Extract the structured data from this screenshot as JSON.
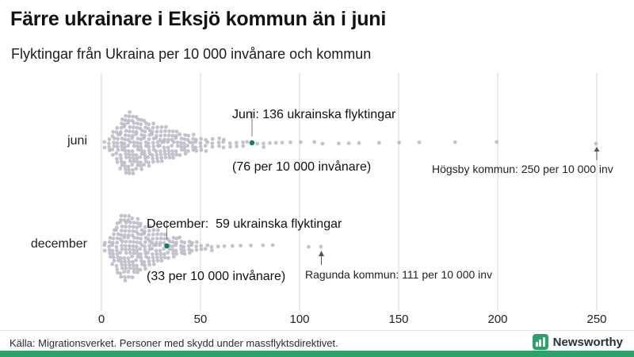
{
  "meta": {
    "source": "Källa: Migrationsverket. Personer med skydd under massflyktsdirektivet.",
    "brand": "Newsworthy"
  },
  "chart_data": {
    "type": "beeswarm",
    "title": "Färre ukrainare i Eksjö kommun än i juni",
    "subtitle": "Flyktingar från Ukraina per 10 000 invånare och kommun",
    "xlabel": "Flyktingar från Ukraina per 10 000 invånare",
    "x_range": [
      0,
      250
    ],
    "x_ticks": [
      0,
      50,
      100,
      150,
      200,
      250
    ],
    "grid": true,
    "colors": {
      "dot": "#b8b8c6",
      "highlight": "#0a7f63",
      "grid": "#d6d6d6",
      "pointer": "#555555",
      "brand_green": "#2aa26a"
    },
    "rows": [
      {
        "label": "juni",
        "highlight": {
          "value": 76,
          "refugees": 136,
          "per_10000": 76,
          "line1": "Juni: 136 ukrainska flyktingar",
          "line2": "(76 per 10 000 invånare)"
        },
        "outlier": {
          "value": 250,
          "label": "Högsby kommun: 250 per 10 000 inv"
        },
        "points": [
          [
            2,
            2
          ],
          [
            4,
            4
          ],
          [
            6,
            7
          ],
          [
            8,
            10
          ],
          [
            10,
            14
          ],
          [
            12,
            16
          ],
          [
            14,
            17
          ],
          [
            16,
            16
          ],
          [
            18,
            15
          ],
          [
            20,
            14
          ],
          [
            22,
            13
          ],
          [
            24,
            12
          ],
          [
            26,
            11
          ],
          [
            28,
            10
          ],
          [
            30,
            10
          ],
          [
            32,
            9
          ],
          [
            34,
            8
          ],
          [
            36,
            8
          ],
          [
            38,
            7
          ],
          [
            40,
            6
          ],
          [
            42,
            6
          ],
          [
            44,
            5
          ],
          [
            46,
            5
          ],
          [
            48,
            4
          ],
          [
            50,
            4
          ],
          [
            53,
            4
          ],
          [
            56,
            3
          ],
          [
            59,
            3
          ],
          [
            62,
            3
          ],
          [
            65,
            2
          ],
          [
            68,
            2
          ],
          [
            71,
            2
          ],
          [
            74,
            1
          ],
          [
            79,
            1
          ],
          [
            82,
            2
          ],
          [
            85,
            1
          ],
          [
            88,
            1
          ],
          [
            91,
            1
          ],
          [
            95,
            1
          ],
          [
            100,
            1
          ],
          [
            108,
            1
          ],
          [
            112,
            1
          ],
          [
            120,
            1
          ],
          [
            125,
            1
          ],
          [
            130,
            1
          ],
          [
            140,
            1
          ],
          [
            150,
            1
          ],
          [
            160,
            1
          ],
          [
            178,
            1
          ],
          [
            200,
            1
          ],
          [
            250,
            1
          ]
        ]
      },
      {
        "label": "december",
        "highlight": {
          "value": 33,
          "refugees": 59,
          "per_10000": 33,
          "line1": "December:  59 ukrainska flyktingar",
          "line2": "(33 per 10 000 invånare)"
        },
        "outlier": {
          "value": 111,
          "label": "Ragunda kommun: 111 per 10 000 inv"
        },
        "points": [
          [
            2,
            3
          ],
          [
            4,
            6
          ],
          [
            6,
            10
          ],
          [
            8,
            14
          ],
          [
            10,
            17
          ],
          [
            12,
            18
          ],
          [
            14,
            17
          ],
          [
            16,
            16
          ],
          [
            18,
            15
          ],
          [
            20,
            13
          ],
          [
            22,
            12
          ],
          [
            24,
            11
          ],
          [
            26,
            10
          ],
          [
            28,
            9
          ],
          [
            30,
            8
          ],
          [
            32,
            7
          ],
          [
            34,
            6
          ],
          [
            36,
            6
          ],
          [
            38,
            5
          ],
          [
            40,
            5
          ],
          [
            42,
            4
          ],
          [
            44,
            4
          ],
          [
            46,
            3
          ],
          [
            48,
            3
          ],
          [
            50,
            2
          ],
          [
            53,
            2
          ],
          [
            56,
            2
          ],
          [
            59,
            1
          ],
          [
            62,
            1
          ],
          [
            66,
            1
          ],
          [
            70,
            1
          ],
          [
            75,
            1
          ],
          [
            81,
            1
          ],
          [
            87,
            1
          ],
          [
            105,
            1
          ],
          [
            111,
            1
          ]
        ]
      }
    ]
  }
}
